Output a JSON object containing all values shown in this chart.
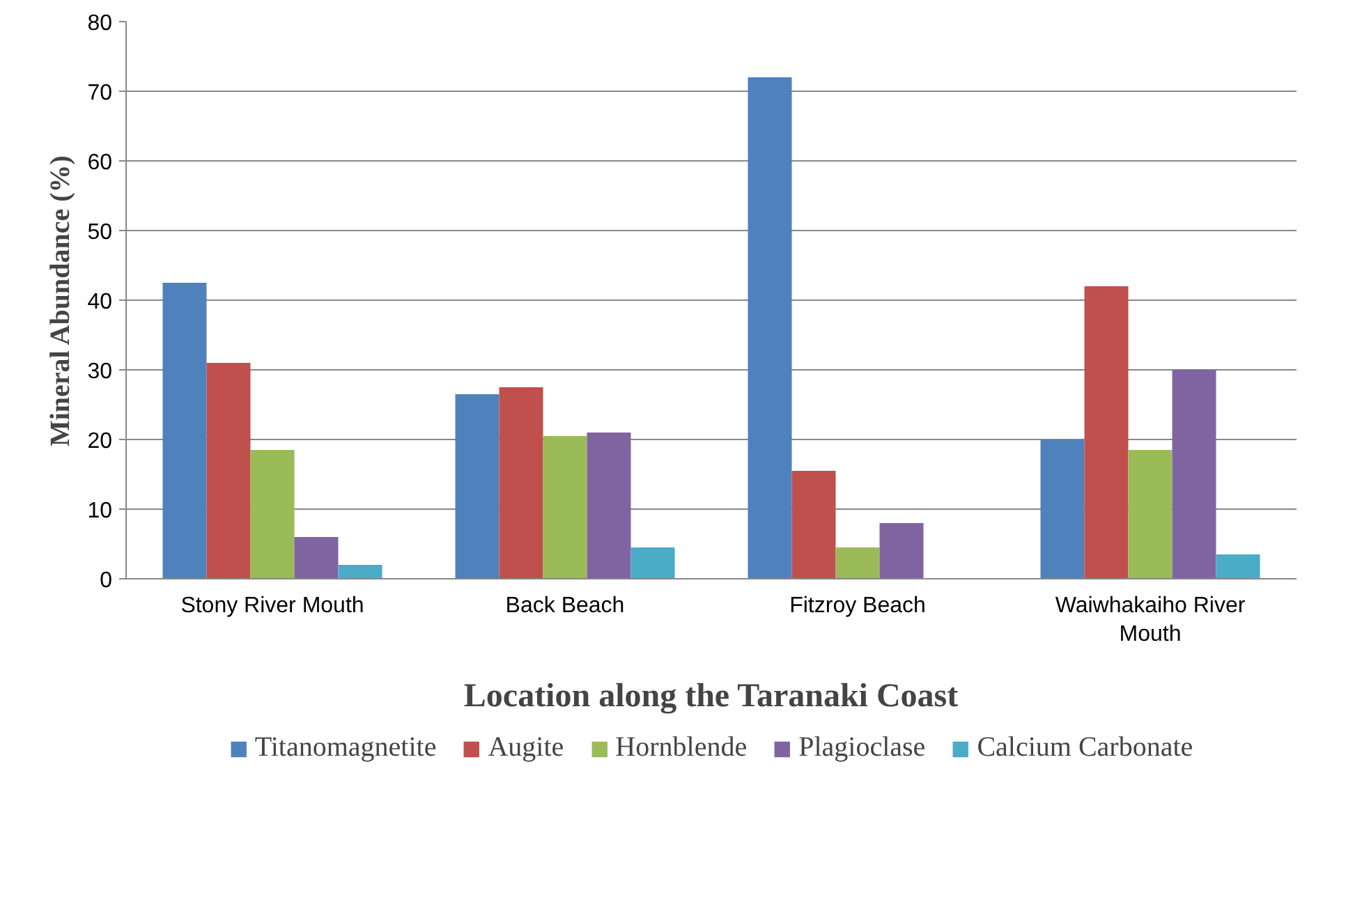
{
  "chart_data": {
    "type": "bar",
    "xlabel": "Location along the Taranaki Coast",
    "ylabel": "Mineral Abundance (%)",
    "categories": [
      "Stony River Mouth",
      "Back Beach",
      "Fitzroy Beach",
      "Waiwhakaiho River Mouth"
    ],
    "series": [
      {
        "name": "Titanomagnetite",
        "color": "#4f81bd",
        "values": [
          42.5,
          26.5,
          72,
          20
        ]
      },
      {
        "name": "Augite",
        "color": "#c0504d",
        "values": [
          31,
          27.5,
          15.5,
          42
        ]
      },
      {
        "name": "Hornblende",
        "color": "#9bbb59",
        "values": [
          18.5,
          20.5,
          4.5,
          18.5
        ]
      },
      {
        "name": "Plagioclase",
        "color": "#8064a2",
        "values": [
          6,
          21,
          8,
          30
        ]
      },
      {
        "name": "Calcium Carbonate",
        "color": "#4bacc6",
        "values": [
          2,
          4.5,
          0,
          3.5
        ]
      }
    ],
    "ylim": [
      0,
      80
    ],
    "yticks": [
      0,
      10,
      20,
      30,
      40,
      50,
      60,
      70,
      80
    ],
    "grid": "y",
    "legend": "bottom"
  }
}
